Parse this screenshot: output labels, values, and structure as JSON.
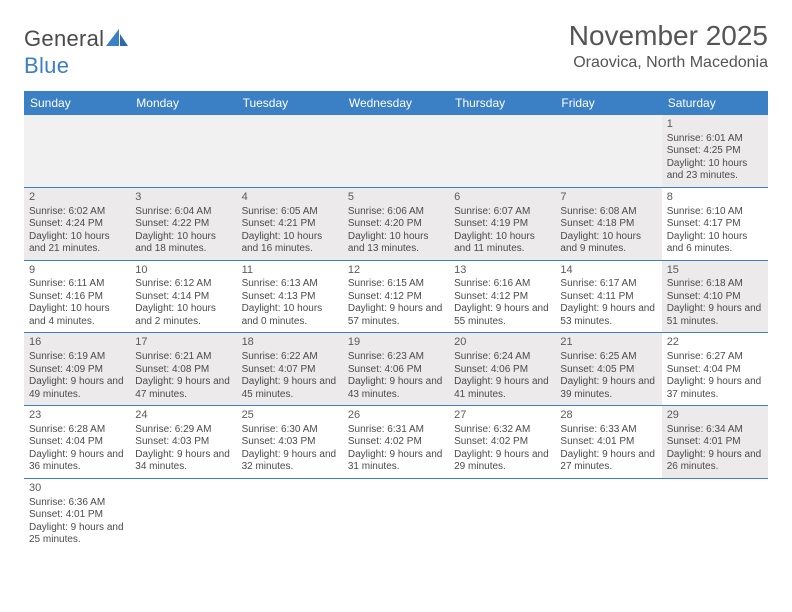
{
  "brand": {
    "part1": "General",
    "part2": "Blue"
  },
  "title": "November 2025",
  "location": "Oraovica, North Macedonia",
  "colors": {
    "header_bg": "#3b7fc4",
    "header_fg": "#ffffff",
    "shaded_bg": "#eceaea",
    "border": "#3b7fc4",
    "text": "#4b4b4b"
  },
  "day_headers": [
    "Sunday",
    "Monday",
    "Tuesday",
    "Wednesday",
    "Thursday",
    "Friday",
    "Saturday"
  ],
  "weeks": [
    [
      {
        "empty": true
      },
      {
        "empty": true
      },
      {
        "empty": true
      },
      {
        "empty": true
      },
      {
        "empty": true
      },
      {
        "empty": true
      },
      {
        "day": "1",
        "sunrise": "Sunrise: 6:01 AM",
        "sunset": "Sunset: 4:25 PM",
        "daylight": "Daylight: 10 hours and 23 minutes.",
        "shaded": true
      }
    ],
    [
      {
        "day": "2",
        "sunrise": "Sunrise: 6:02 AM",
        "sunset": "Sunset: 4:24 PM",
        "daylight": "Daylight: 10 hours and 21 minutes.",
        "shaded": true
      },
      {
        "day": "3",
        "sunrise": "Sunrise: 6:04 AM",
        "sunset": "Sunset: 4:22 PM",
        "daylight": "Daylight: 10 hours and 18 minutes.",
        "shaded": true
      },
      {
        "day": "4",
        "sunrise": "Sunrise: 6:05 AM",
        "sunset": "Sunset: 4:21 PM",
        "daylight": "Daylight: 10 hours and 16 minutes.",
        "shaded": true
      },
      {
        "day": "5",
        "sunrise": "Sunrise: 6:06 AM",
        "sunset": "Sunset: 4:20 PM",
        "daylight": "Daylight: 10 hours and 13 minutes.",
        "shaded": true
      },
      {
        "day": "6",
        "sunrise": "Sunrise: 6:07 AM",
        "sunset": "Sunset: 4:19 PM",
        "daylight": "Daylight: 10 hours and 11 minutes.",
        "shaded": true
      },
      {
        "day": "7",
        "sunrise": "Sunrise: 6:08 AM",
        "sunset": "Sunset: 4:18 PM",
        "daylight": "Daylight: 10 hours and 9 minutes.",
        "shaded": true
      },
      {
        "day": "8",
        "sunrise": "Sunrise: 6:10 AM",
        "sunset": "Sunset: 4:17 PM",
        "daylight": "Daylight: 10 hours and 6 minutes.",
        "shaded": false
      }
    ],
    [
      {
        "day": "9",
        "sunrise": "Sunrise: 6:11 AM",
        "sunset": "Sunset: 4:16 PM",
        "daylight": "Daylight: 10 hours and 4 minutes.",
        "shaded": false
      },
      {
        "day": "10",
        "sunrise": "Sunrise: 6:12 AM",
        "sunset": "Sunset: 4:14 PM",
        "daylight": "Daylight: 10 hours and 2 minutes.",
        "shaded": false
      },
      {
        "day": "11",
        "sunrise": "Sunrise: 6:13 AM",
        "sunset": "Sunset: 4:13 PM",
        "daylight": "Daylight: 10 hours and 0 minutes.",
        "shaded": false
      },
      {
        "day": "12",
        "sunrise": "Sunrise: 6:15 AM",
        "sunset": "Sunset: 4:12 PM",
        "daylight": "Daylight: 9 hours and 57 minutes.",
        "shaded": false
      },
      {
        "day": "13",
        "sunrise": "Sunrise: 6:16 AM",
        "sunset": "Sunset: 4:12 PM",
        "daylight": "Daylight: 9 hours and 55 minutes.",
        "shaded": false
      },
      {
        "day": "14",
        "sunrise": "Sunrise: 6:17 AM",
        "sunset": "Sunset: 4:11 PM",
        "daylight": "Daylight: 9 hours and 53 minutes.",
        "shaded": false
      },
      {
        "day": "15",
        "sunrise": "Sunrise: 6:18 AM",
        "sunset": "Sunset: 4:10 PM",
        "daylight": "Daylight: 9 hours and 51 minutes.",
        "shaded": true
      }
    ],
    [
      {
        "day": "16",
        "sunrise": "Sunrise: 6:19 AM",
        "sunset": "Sunset: 4:09 PM",
        "daylight": "Daylight: 9 hours and 49 minutes.",
        "shaded": true
      },
      {
        "day": "17",
        "sunrise": "Sunrise: 6:21 AM",
        "sunset": "Sunset: 4:08 PM",
        "daylight": "Daylight: 9 hours and 47 minutes.",
        "shaded": true
      },
      {
        "day": "18",
        "sunrise": "Sunrise: 6:22 AM",
        "sunset": "Sunset: 4:07 PM",
        "daylight": "Daylight: 9 hours and 45 minutes.",
        "shaded": true
      },
      {
        "day": "19",
        "sunrise": "Sunrise: 6:23 AM",
        "sunset": "Sunset: 4:06 PM",
        "daylight": "Daylight: 9 hours and 43 minutes.",
        "shaded": true
      },
      {
        "day": "20",
        "sunrise": "Sunrise: 6:24 AM",
        "sunset": "Sunset: 4:06 PM",
        "daylight": "Daylight: 9 hours and 41 minutes.",
        "shaded": true
      },
      {
        "day": "21",
        "sunrise": "Sunrise: 6:25 AM",
        "sunset": "Sunset: 4:05 PM",
        "daylight": "Daylight: 9 hours and 39 minutes.",
        "shaded": true
      },
      {
        "day": "22",
        "sunrise": "Sunrise: 6:27 AM",
        "sunset": "Sunset: 4:04 PM",
        "daylight": "Daylight: 9 hours and 37 minutes.",
        "shaded": false
      }
    ],
    [
      {
        "day": "23",
        "sunrise": "Sunrise: 6:28 AM",
        "sunset": "Sunset: 4:04 PM",
        "daylight": "Daylight: 9 hours and 36 minutes.",
        "shaded": false
      },
      {
        "day": "24",
        "sunrise": "Sunrise: 6:29 AM",
        "sunset": "Sunset: 4:03 PM",
        "daylight": "Daylight: 9 hours and 34 minutes.",
        "shaded": false
      },
      {
        "day": "25",
        "sunrise": "Sunrise: 6:30 AM",
        "sunset": "Sunset: 4:03 PM",
        "daylight": "Daylight: 9 hours and 32 minutes.",
        "shaded": false
      },
      {
        "day": "26",
        "sunrise": "Sunrise: 6:31 AM",
        "sunset": "Sunset: 4:02 PM",
        "daylight": "Daylight: 9 hours and 31 minutes.",
        "shaded": false
      },
      {
        "day": "27",
        "sunrise": "Sunrise: 6:32 AM",
        "sunset": "Sunset: 4:02 PM",
        "daylight": "Daylight: 9 hours and 29 minutes.",
        "shaded": false
      },
      {
        "day": "28",
        "sunrise": "Sunrise: 6:33 AM",
        "sunset": "Sunset: 4:01 PM",
        "daylight": "Daylight: 9 hours and 27 minutes.",
        "shaded": false
      },
      {
        "day": "29",
        "sunrise": "Sunrise: 6:34 AM",
        "sunset": "Sunset: 4:01 PM",
        "daylight": "Daylight: 9 hours and 26 minutes.",
        "shaded": true
      }
    ],
    [
      {
        "day": "30",
        "sunrise": "Sunrise: 6:36 AM",
        "sunset": "Sunset: 4:01 PM",
        "daylight": "Daylight: 9 hours and 25 minutes.",
        "shaded": false
      },
      {
        "empty": true,
        "trailing": true
      },
      {
        "empty": true,
        "trailing": true
      },
      {
        "empty": true,
        "trailing": true
      },
      {
        "empty": true,
        "trailing": true
      },
      {
        "empty": true,
        "trailing": true
      },
      {
        "empty": true,
        "trailing": true
      }
    ]
  ]
}
